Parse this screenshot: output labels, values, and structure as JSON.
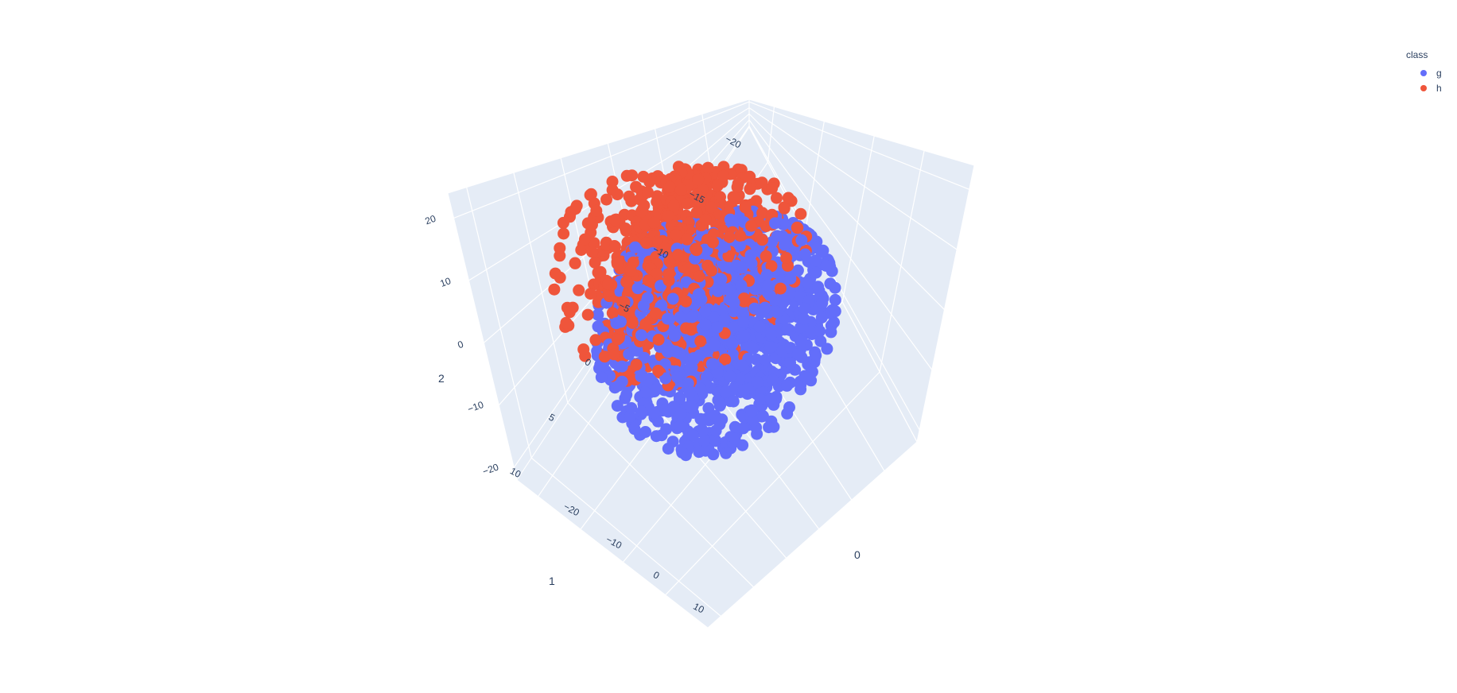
{
  "chart_data": {
    "type": "scatter3d",
    "title": "",
    "legend": {
      "title": "class",
      "placement": "top-right",
      "entries": [
        {
          "name": "g",
          "color": "#636efa"
        },
        {
          "name": "h",
          "color": "#ef553b"
        }
      ]
    },
    "axes": {
      "x": {
        "title": "0",
        "range": [
          -25,
          20
        ],
        "ticks": [
          "-20",
          "-10",
          "0",
          "10"
        ]
      },
      "y": {
        "title": "1",
        "range": [
          -20,
          12
        ],
        "ticks": [
          "-20",
          "-15",
          "-10",
          "-5",
          "0",
          "5",
          "10"
        ]
      },
      "z": {
        "title": "2",
        "range": [
          -22,
          24
        ],
        "ticks": [
          "-20",
          "-10",
          "0",
          "10",
          "20"
        ]
      }
    },
    "grid": true,
    "series": [
      {
        "name": "g",
        "color": "#636efa",
        "approx_points": 12332,
        "distribution": {
          "center": [
            0,
            -2,
            0
          ],
          "spread": [
            8,
            6,
            8
          ]
        }
      },
      {
        "name": "h",
        "color": "#ef553b",
        "approx_points": 6688,
        "distribution": {
          "center": [
            -4,
            0,
            10
          ],
          "spread": [
            6,
            5,
            8
          ]
        }
      }
    ]
  }
}
